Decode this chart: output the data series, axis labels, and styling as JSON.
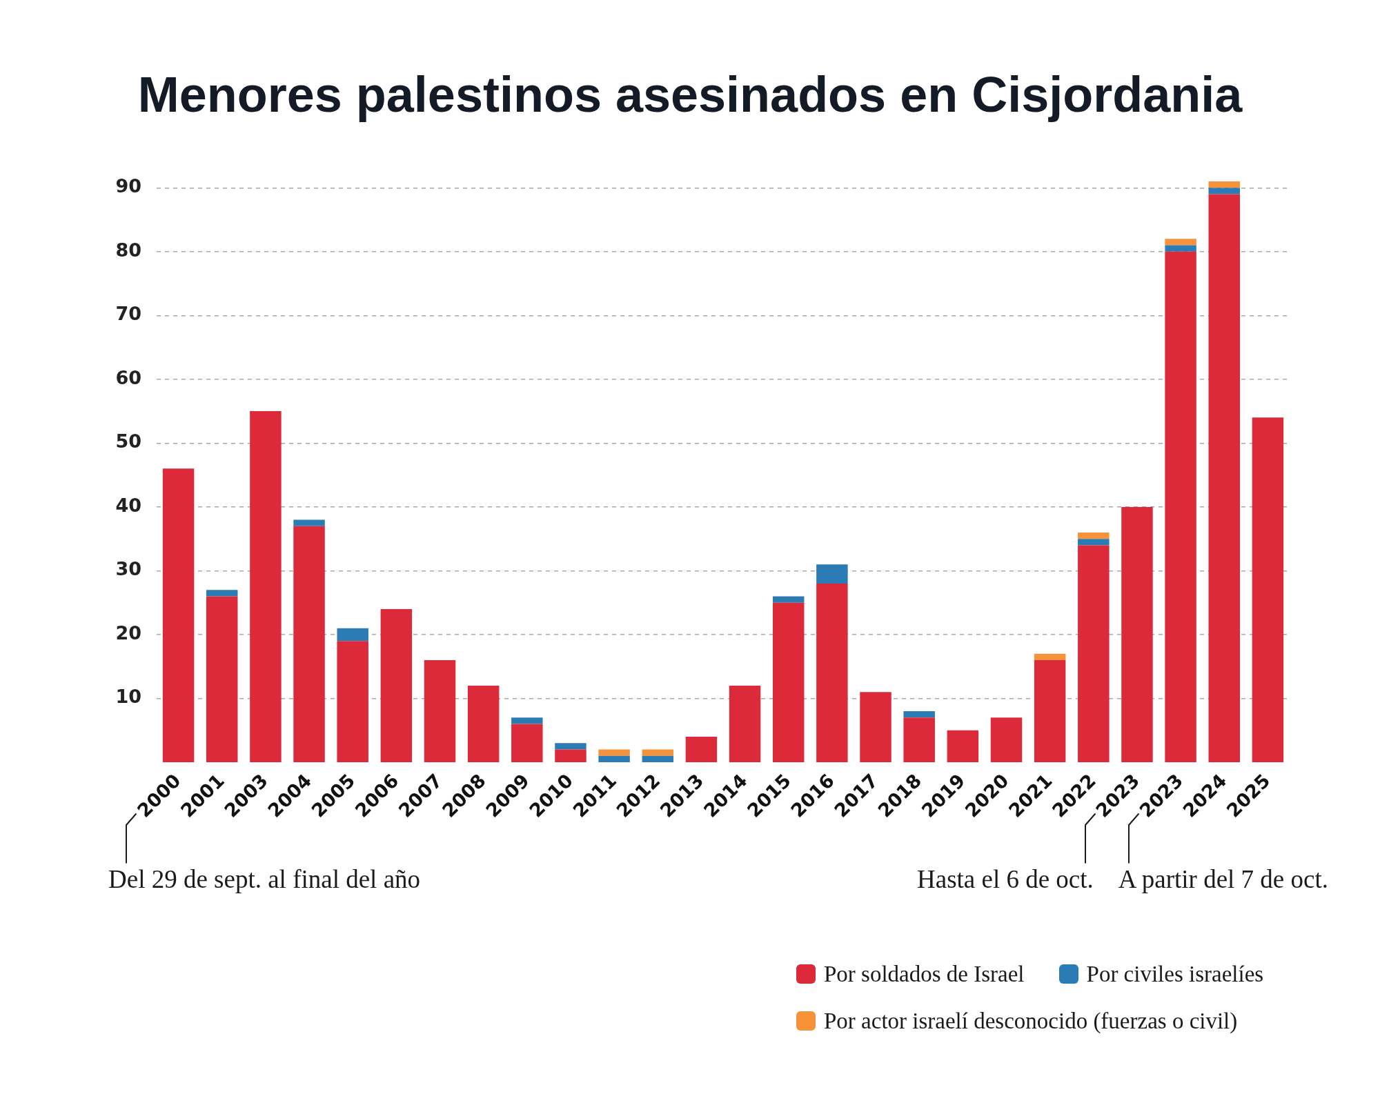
{
  "chart_data": {
    "type": "bar",
    "title": "Menores palestinos asesinados en Cisjordania",
    "categories": [
      "2000",
      "2001",
      "2003",
      "2004",
      "2005",
      "2006",
      "2007",
      "2008",
      "2009",
      "2010",
      "2011",
      "2012",
      "2013",
      "2014",
      "2015",
      "2016",
      "2017",
      "2018",
      "2019",
      "2020",
      "2021",
      "2022",
      "2023",
      "2023",
      "2024",
      "2025"
    ],
    "series": [
      {
        "name": "Por soldados de Israel",
        "color": "#dd2a3b",
        "values": [
          46,
          26,
          55,
          37,
          19,
          24,
          16,
          12,
          6,
          2,
          0,
          0,
          4,
          12,
          25,
          28,
          11,
          7,
          5,
          7,
          16,
          34,
          40,
          80,
          89,
          54
        ]
      },
      {
        "name": "Por civiles israelíes",
        "color": "#2b7bb5",
        "values": [
          0,
          1,
          0,
          1,
          2,
          0,
          0,
          0,
          1,
          1,
          1,
          1,
          0,
          0,
          1,
          3,
          0,
          1,
          0,
          0,
          0,
          1,
          0,
          1,
          1,
          0
        ]
      },
      {
        "name": "Por actor israelí desconocido (fuerzas o civil)",
        "color": "#f5923a",
        "values": [
          0,
          0,
          0,
          0,
          0,
          0,
          0,
          0,
          0,
          0,
          1,
          1,
          0,
          0,
          0,
          0,
          0,
          0,
          0,
          0,
          1,
          1,
          0,
          1,
          1,
          0
        ]
      }
    ],
    "stacked": true,
    "ylim": [
      0,
      91
    ],
    "yticks": [
      10,
      20,
      30,
      40,
      50,
      60,
      70,
      80,
      90
    ],
    "grid": "y",
    "legend": "bottom right",
    "annotations": [
      "Del 29 de sept. al final del año",
      "Hasta el 6 de oct.",
      "A partir del 7 de oct."
    ]
  }
}
